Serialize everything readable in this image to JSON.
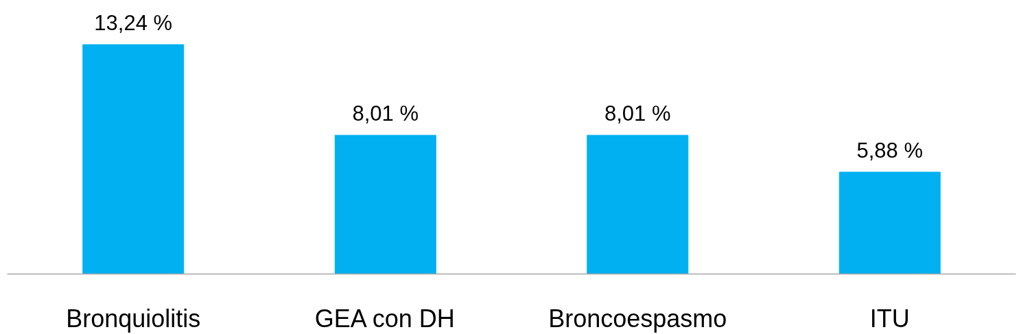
{
  "chart_data": {
    "type": "bar",
    "categories": [
      "Bronquiolitis",
      "GEA con DH",
      "Broncoespasmo",
      "ITU"
    ],
    "values": [
      13.24,
      8.01,
      8.01,
      5.88
    ],
    "value_labels": [
      "13,24 %",
      "8,01 %",
      "8,01 %",
      "5,88 %"
    ],
    "color": "#00b0f0"
  }
}
